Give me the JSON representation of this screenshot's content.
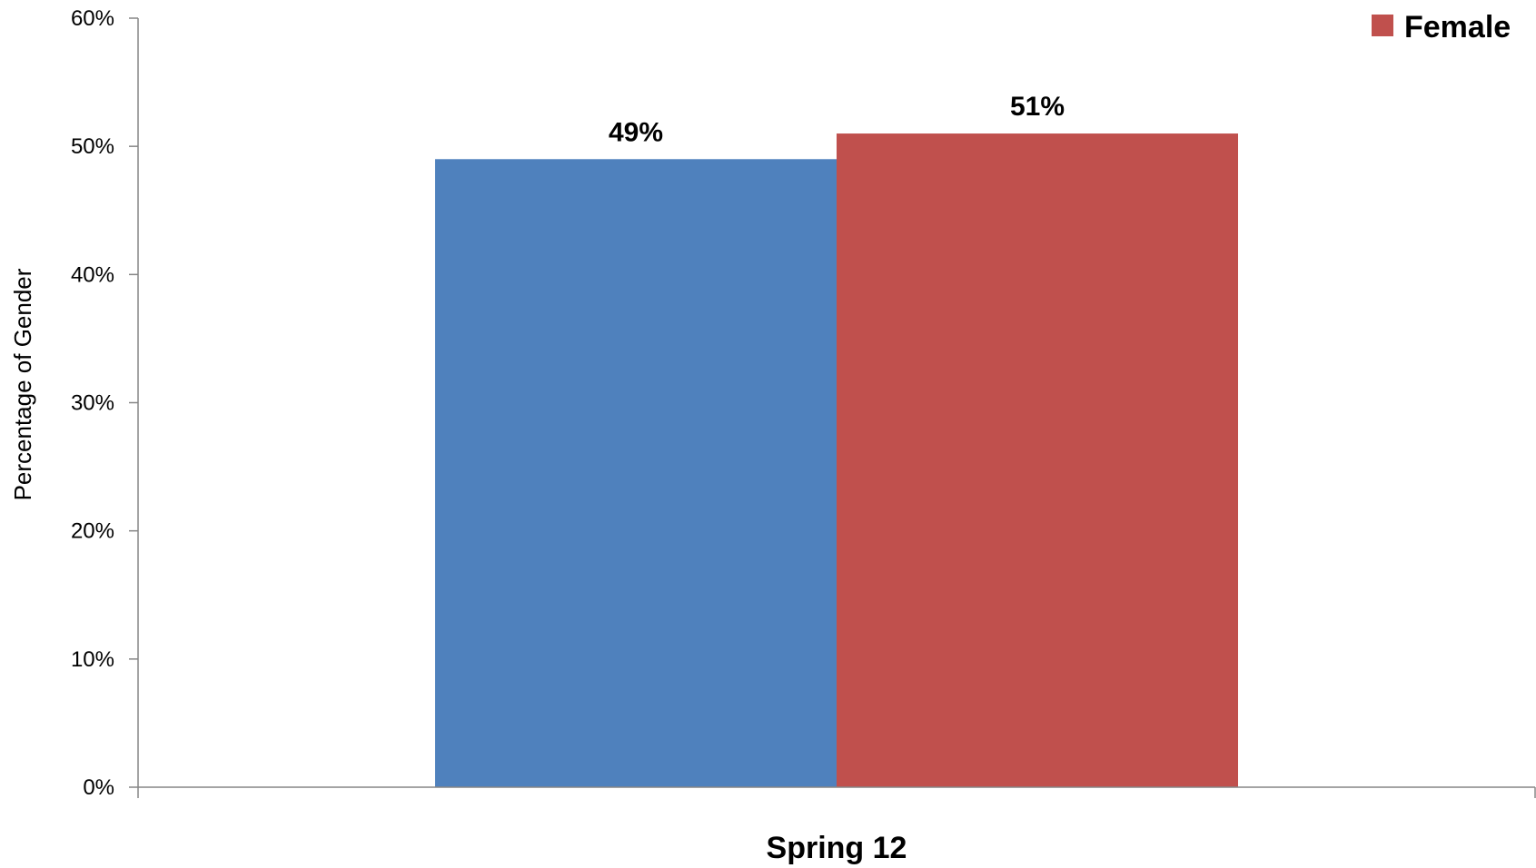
{
  "chart_data": {
    "type": "bar",
    "categories": [
      "Spring 12"
    ],
    "series": [
      {
        "values": [
          49
        ],
        "color": "#4f81bd",
        "data_labels": [
          "49%"
        ]
      },
      {
        "name": "Female",
        "values": [
          51
        ],
        "color": "#c0504d",
        "data_labels": [
          "51%"
        ]
      }
    ],
    "xlabel": "",
    "ylabel": "Percentage of Gender",
    "ylim": [
      0,
      60
    ],
    "y_ticks": [
      0,
      10,
      20,
      30,
      40,
      50,
      60
    ],
    "y_tick_labels": [
      "0%",
      "10%",
      "20%",
      "30%",
      "40%",
      "50%",
      "60%"
    ],
    "legend": {
      "placement": "top-right",
      "entries": [
        "Female"
      ]
    },
    "grid": false
  }
}
